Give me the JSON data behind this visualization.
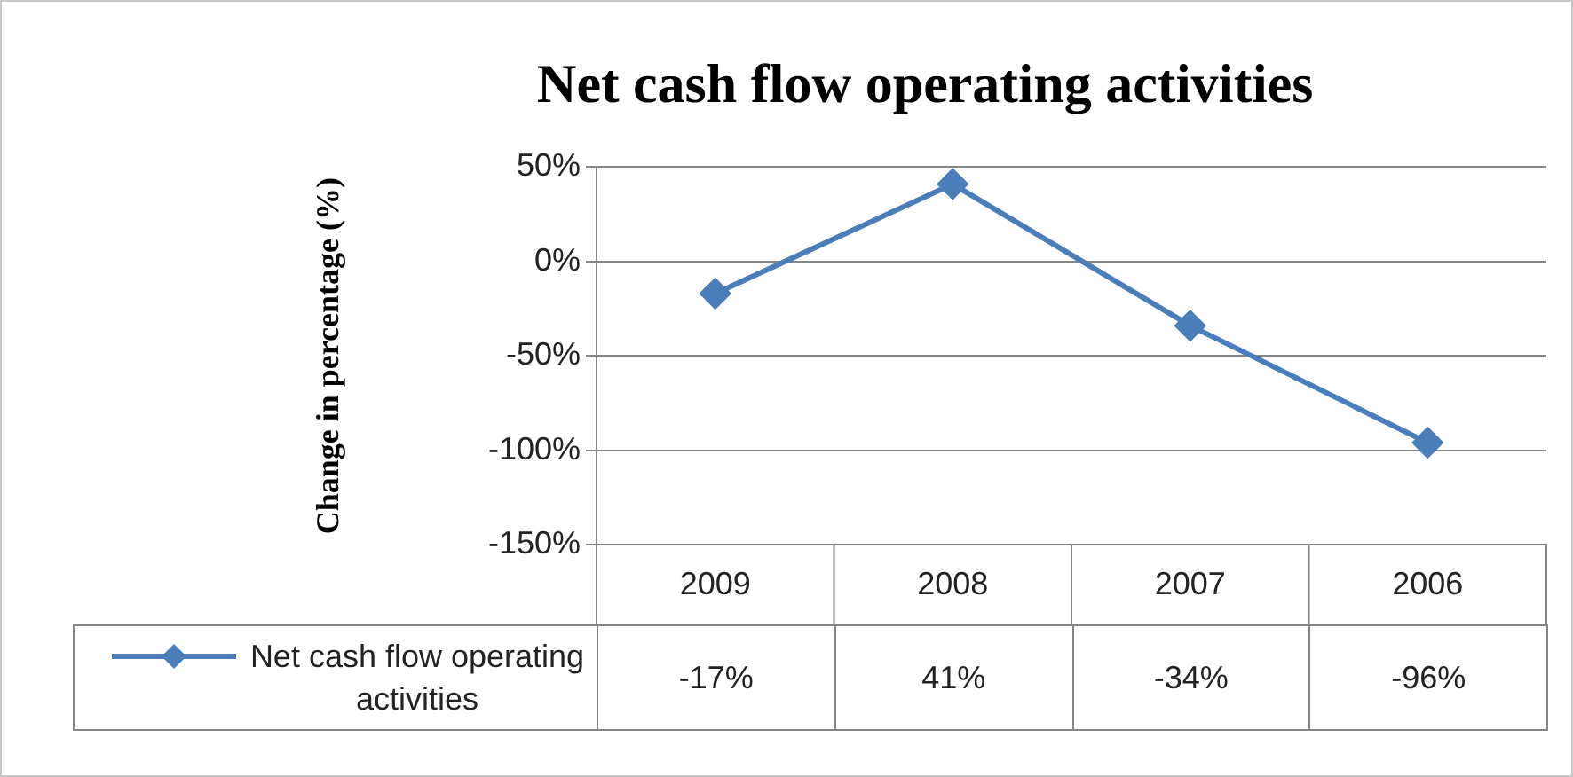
{
  "chart_data": {
    "type": "line",
    "title": "Net cash flow operating activities",
    "ylabel": "Change in percentage (%)",
    "categories": [
      "2009",
      "2008",
      "2007",
      "2006"
    ],
    "series": [
      {
        "name": "Net cash flow operating activities",
        "color": "#4a7ebb",
        "values": [
          -17,
          41,
          -34,
          -96
        ],
        "value_labels": [
          "-17%",
          "41%",
          "-34%",
          "-96%"
        ]
      }
    ],
    "ylim": [
      -150,
      50
    ],
    "yticks": [
      {
        "value": -150,
        "label": "-150%"
      },
      {
        "value": -100,
        "label": "-100%"
      },
      {
        "value": -50,
        "label": "-50%"
      },
      {
        "value": 0,
        "label": "0%"
      },
      {
        "value": 50,
        "label": "50%"
      }
    ],
    "grid": "y",
    "marker": "diamond"
  }
}
